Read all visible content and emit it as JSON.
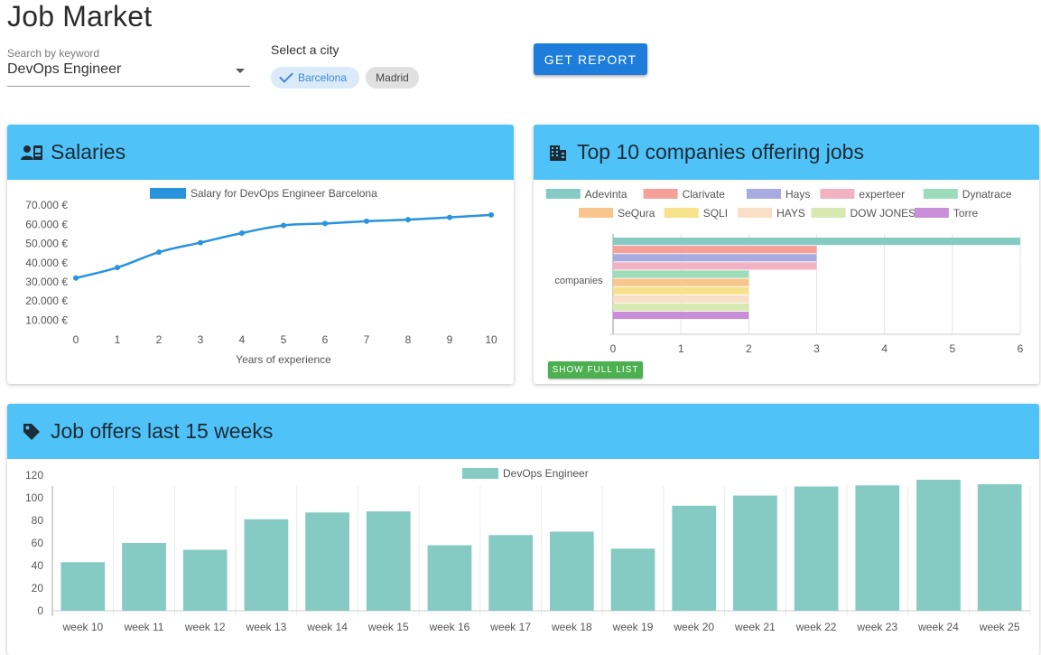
{
  "app": {
    "title": "Job Market"
  },
  "search": {
    "label": "Search by keyword",
    "value": "DevOps Engineer"
  },
  "city": {
    "label": "Select a city",
    "options": [
      {
        "label": "Barcelona",
        "selected": true
      },
      {
        "label": "Madrid",
        "selected": false
      }
    ]
  },
  "actions": {
    "get_report": "GET REPORT",
    "show_full_list": "SHOW FULL LIST"
  },
  "colors": {
    "header": "#4fc3f7",
    "primary": "#1e7ddb",
    "line": "#2a93dd",
    "bar": "#86cbc3",
    "green_button": "#4caf50"
  },
  "salary_card": {
    "title": "Salaries",
    "icon": "contact-card-icon"
  },
  "companies_card": {
    "title": "Top 10 companies offering jobs",
    "icon": "building-icon"
  },
  "offers_card": {
    "title": "Job offers last 15 weeks",
    "icon": "tag-icon"
  },
  "chart_data": [
    {
      "type": "line",
      "legend": "Salary for DevOps Engineer Barcelona",
      "xlabel": "Years of experience",
      "ylabel": "",
      "x": [
        0,
        1,
        2,
        3,
        4,
        5,
        6,
        7,
        8,
        9,
        10
      ],
      "y": [
        32000,
        37500,
        45500,
        50500,
        55500,
        59500,
        60500,
        61700,
        62500,
        63700,
        65000
      ],
      "yticks": [
        "70.000 €",
        "60.000 €",
        "50.000 €",
        "40.000 €",
        "30.000 €",
        "20.000 €",
        "10.000 €"
      ],
      "ytick_values": [
        70000,
        60000,
        50000,
        40000,
        30000,
        20000,
        10000
      ],
      "ylim": [
        5000,
        72000
      ],
      "grid": false
    },
    {
      "type": "bar",
      "orientation": "horizontal",
      "category": "companies",
      "series": [
        {
          "name": "Adevinta",
          "value": 6,
          "color": "#86cbc3"
        },
        {
          "name": "Clarivate",
          "value": 3,
          "color": "#f6a09a"
        },
        {
          "name": "Hays",
          "value": 3,
          "color": "#a7abdf"
        },
        {
          "name": "experteer",
          "value": 3,
          "color": "#f1b3c4"
        },
        {
          "name": "Dynatrace",
          "value": 2,
          "color": "#9ddcb9"
        },
        {
          "name": "SeQura",
          "value": 2,
          "color": "#f8c58d"
        },
        {
          "name": "SQLI",
          "value": 2,
          "color": "#f7e28b"
        },
        {
          "name": "HAYS",
          "value": 2,
          "color": "#f9dfc6"
        },
        {
          "name": "DOW JONES",
          "value": 2,
          "color": "#d8e8b1"
        },
        {
          "name": "Torre",
          "value": 2,
          "color": "#c98ed8"
        }
      ],
      "xticks": [
        0,
        1,
        2,
        3,
        4,
        5,
        6
      ],
      "xlim": [
        0,
        6
      ],
      "legend_position": "top",
      "grid": true
    },
    {
      "type": "bar",
      "legend": "DevOps Engineer",
      "categories": [
        "week 10",
        "week 11",
        "week 12",
        "week 13",
        "week 14",
        "week 15",
        "week 16",
        "week 17",
        "week 18",
        "week 19",
        "week 20",
        "week 21",
        "week 22",
        "week 23",
        "week 24",
        "week 25"
      ],
      "values": [
        43,
        60,
        54,
        81,
        87,
        88,
        58,
        67,
        70,
        55,
        93,
        102,
        110,
        111,
        116,
        112
      ],
      "yticks": [
        120,
        100,
        80,
        60,
        40,
        20,
        0
      ],
      "ylim": [
        0,
        120
      ],
      "grid": true
    }
  ]
}
